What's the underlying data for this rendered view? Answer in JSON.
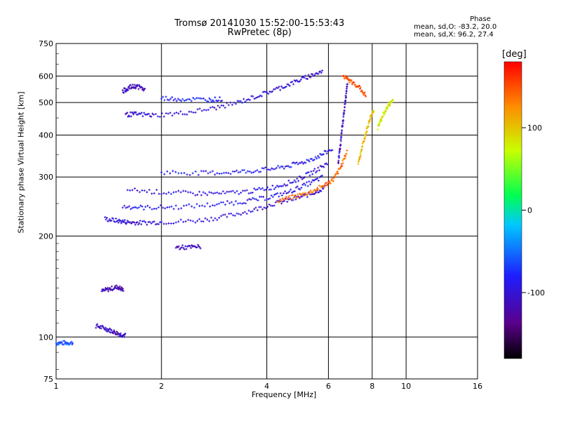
{
  "header": {
    "title_line1": "Tromsø 20141030 15:52:00-15:53:43",
    "title_line2": "RwPretec (8p)"
  },
  "phase_info": {
    "heading": "Phase",
    "line_o": "mean, sd,O: -83.2, 20.0",
    "line_x": "mean, sd,X:  96.2, 27.4"
  },
  "chart_data": {
    "type": "scatter",
    "xlabel": "Frequency [MHz]",
    "ylabel": "Stationary phase Virtual Height [km]",
    "xscale": "log",
    "yscale": "log",
    "xlim": [
      1,
      16
    ],
    "ylim": [
      75,
      750
    ],
    "xticks": [
      1,
      2,
      4,
      6,
      8,
      10,
      16
    ],
    "xtick_labels": [
      "1",
      "2",
      "4",
      "6",
      "8",
      "10",
      "16"
    ],
    "yticks": [
      75,
      100,
      200,
      300,
      400,
      500,
      600,
      750
    ],
    "ytick_labels": [
      "75",
      "100",
      "200",
      "300",
      "400",
      "500",
      "600",
      "750"
    ],
    "grid": true,
    "colorbar": {
      "label": "[deg]",
      "range": [
        -180,
        180
      ],
      "ticks": [
        -100,
        0,
        100
      ],
      "tick_labels": [
        "-100",
        "0",
        "100"
      ],
      "colormap": [
        "#000000",
        "#5a008c",
        "#1e1eff",
        "#00c8ff",
        "#00ff50",
        "#c8ff00",
        "#ff8c00",
        "#ff0000"
      ]
    },
    "traces": [
      {
        "name": "",
        "freq": [
          1.0,
          1.06,
          1.12
        ],
        "height": [
          96,
          96,
          96
        ],
        "phase": -60
      },
      {
        "name": "",
        "freq": [
          1.3,
          1.38,
          1.45,
          1.52,
          1.58
        ],
        "height": [
          108,
          106,
          104,
          102,
          101
        ],
        "phase": -110
      },
      {
        "name": "",
        "freq": [
          1.35,
          1.42,
          1.5,
          1.56
        ],
        "height": [
          137,
          139,
          141,
          138
        ],
        "phase": -115
      },
      {
        "name": "",
        "freq": [
          1.38,
          1.5,
          1.6,
          1.75,
          2.0,
          2.5,
          3.0,
          3.6,
          4.2,
          4.8,
          5.4,
          5.9
        ],
        "height": [
          225,
          222,
          220,
          219,
          220,
          222,
          228,
          238,
          250,
          258,
          268,
          280
        ],
        "phase": -100
      },
      {
        "name": "",
        "freq": [
          4.3,
          4.8,
          5.3,
          5.8,
          6.2,
          6.5,
          6.8
        ],
        "height": [
          255,
          262,
          270,
          282,
          295,
          320,
          360
        ],
        "phase": 140
      },
      {
        "name": "",
        "freq": [
          1.55,
          1.8,
          2.2,
          2.8,
          3.4,
          4.0,
          4.6,
          5.2,
          5.8
        ],
        "height": [
          245,
          243,
          244,
          248,
          253,
          260,
          270,
          285,
          300
        ],
        "phase": -90
      },
      {
        "name": "",
        "freq": [
          1.6,
          2.0,
          2.5,
          3.0,
          3.6,
          4.2,
          4.8,
          5.4,
          6.0
        ],
        "height": [
          275,
          270,
          268,
          268,
          272,
          280,
          292,
          310,
          330
        ],
        "phase": -95
      },
      {
        "name": "",
        "freq": [
          2.0,
          2.6,
          3.2,
          3.8,
          4.4,
          5.0,
          5.6,
          6.2
        ],
        "height": [
          310,
          308,
          310,
          314,
          320,
          330,
          345,
          365
        ],
        "phase": -85
      },
      {
        "name": "",
        "freq": [
          1.58,
          1.7,
          1.9,
          2.3,
          2.8,
          3.3,
          3.8,
          4.3,
          4.8,
          5.3,
          5.8
        ],
        "height": [
          460,
          462,
          458,
          465,
          480,
          500,
          525,
          550,
          575,
          600,
          620
        ],
        "phase": -100
      },
      {
        "name": "",
        "freq": [
          2.0,
          2.3,
          2.7,
          3.0
        ],
        "height": [
          515,
          512,
          510,
          512
        ],
        "phase": -80
      },
      {
        "name": "",
        "freq": [
          1.55,
          1.62,
          1.7,
          1.8
        ],
        "height": [
          540,
          555,
          560,
          545
        ],
        "phase": -110
      },
      {
        "name": "",
        "freq": [
          2.2,
          2.4,
          2.6
        ],
        "height": [
          185,
          185,
          186
        ],
        "phase": -110
      },
      {
        "name": "",
        "freq": [
          6.4,
          6.5,
          6.6,
          6.7,
          6.8
        ],
        "height": [
          330,
          380,
          440,
          500,
          580
        ],
        "phase": -110
      },
      {
        "name": "",
        "freq": [
          7.3,
          7.5,
          7.7,
          7.9,
          8.1
        ],
        "height": [
          330,
          370,
          410,
          450,
          480
        ],
        "phase": 100
      },
      {
        "name": "",
        "freq": [
          6.6,
          6.9,
          7.3,
          7.7
        ],
        "height": [
          600,
          580,
          560,
          520
        ],
        "phase": 150
      },
      {
        "name": "",
        "freq": [
          8.3,
          8.6,
          8.9,
          9.2
        ],
        "height": [
          420,
          460,
          490,
          510
        ],
        "phase": 80
      }
    ]
  }
}
